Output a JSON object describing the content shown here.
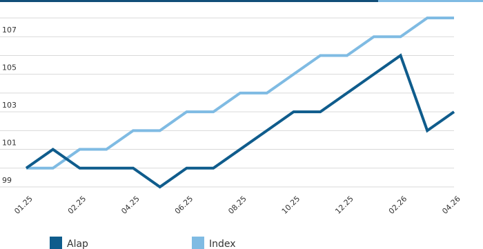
{
  "chart_data": {
    "type": "line",
    "categories": [
      "01.25",
      null,
      "02.25",
      null,
      "04.25",
      null,
      "06.25",
      null,
      "08.25",
      null,
      "10.25",
      null,
      "12.25",
      null,
      "02.26",
      null,
      "04.26"
    ],
    "series": [
      {
        "name": "Alap",
        "color": "#0f5c8c",
        "values": [
          100,
          101,
          100,
          100,
          100,
          99,
          100,
          100,
          101,
          102,
          103,
          103,
          104,
          105,
          106,
          102,
          103
        ]
      },
      {
        "name": "Index",
        "color": "#7fbbe3",
        "values": [
          100,
          100,
          101,
          101,
          102,
          102,
          103,
          103,
          104,
          104,
          105,
          106,
          106,
          107,
          107,
          108,
          108
        ]
      }
    ],
    "ylim": [
      99,
      108
    ],
    "yticks": [
      99,
      101,
      103,
      105,
      107
    ],
    "minor_yticks": [
      100,
      102,
      104,
      106,
      108
    ],
    "grid": true,
    "legend": "bottom"
  }
}
